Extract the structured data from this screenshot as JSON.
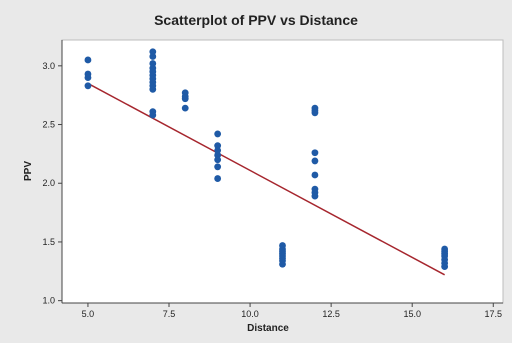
{
  "chart_data": {
    "type": "scatter",
    "title": "Scatterplot of PPV vs Distance",
    "xlabel": "Distance",
    "ylabel": "PPV",
    "xlim": [
      4.2,
      17.8
    ],
    "ylim": [
      0.98,
      3.22
    ],
    "xticks": [
      5.0,
      7.5,
      10.0,
      12.5,
      15.0,
      17.5
    ],
    "xtick_labels": [
      "5.0",
      "7.5",
      "10.0",
      "12.5",
      "15.0",
      "17.5"
    ],
    "yticks": [
      1.0,
      1.5,
      2.0,
      2.5,
      3.0
    ],
    "ytick_labels": [
      "1.0",
      "1.5",
      "2.0",
      "2.5",
      "3.0"
    ],
    "grid": false,
    "legend": "none",
    "points": [
      {
        "x": 5,
        "y": 3.05
      },
      {
        "x": 5,
        "y": 2.93
      },
      {
        "x": 5,
        "y": 2.9
      },
      {
        "x": 5,
        "y": 2.83
      },
      {
        "x": 7,
        "y": 3.12
      },
      {
        "x": 7,
        "y": 3.08
      },
      {
        "x": 7,
        "y": 3.02
      },
      {
        "x": 7,
        "y": 2.98
      },
      {
        "x": 7,
        "y": 2.95
      },
      {
        "x": 7,
        "y": 2.92
      },
      {
        "x": 7,
        "y": 2.89
      },
      {
        "x": 7,
        "y": 2.86
      },
      {
        "x": 7,
        "y": 2.83
      },
      {
        "x": 7,
        "y": 2.8
      },
      {
        "x": 7,
        "y": 2.61
      },
      {
        "x": 7,
        "y": 2.58
      },
      {
        "x": 8,
        "y": 2.77
      },
      {
        "x": 8,
        "y": 2.74
      },
      {
        "x": 8,
        "y": 2.72
      },
      {
        "x": 8,
        "y": 2.64
      },
      {
        "x": 9,
        "y": 2.42
      },
      {
        "x": 9,
        "y": 2.32
      },
      {
        "x": 9,
        "y": 2.28
      },
      {
        "x": 9,
        "y": 2.24
      },
      {
        "x": 9,
        "y": 2.2
      },
      {
        "x": 9,
        "y": 2.14
      },
      {
        "x": 9,
        "y": 2.04
      },
      {
        "x": 11,
        "y": 1.47
      },
      {
        "x": 11,
        "y": 1.44
      },
      {
        "x": 11,
        "y": 1.42
      },
      {
        "x": 11,
        "y": 1.4
      },
      {
        "x": 11,
        "y": 1.38
      },
      {
        "x": 11,
        "y": 1.36
      },
      {
        "x": 11,
        "y": 1.34
      },
      {
        "x": 11,
        "y": 1.31
      },
      {
        "x": 12,
        "y": 2.64
      },
      {
        "x": 12,
        "y": 2.62
      },
      {
        "x": 12,
        "y": 2.6
      },
      {
        "x": 12,
        "y": 2.26
      },
      {
        "x": 12,
        "y": 2.19
      },
      {
        "x": 12,
        "y": 2.07
      },
      {
        "x": 12,
        "y": 1.95
      },
      {
        "x": 12,
        "y": 1.92
      },
      {
        "x": 12,
        "y": 1.89
      },
      {
        "x": 16,
        "y": 1.44
      },
      {
        "x": 16,
        "y": 1.42
      },
      {
        "x": 16,
        "y": 1.4
      },
      {
        "x": 16,
        "y": 1.38
      },
      {
        "x": 16,
        "y": 1.35
      },
      {
        "x": 16,
        "y": 1.32
      },
      {
        "x": 16,
        "y": 1.29
      }
    ],
    "fit_line": {
      "x": [
        5,
        16
      ],
      "y": [
        2.85,
        1.22
      ]
    },
    "colors": {
      "background": "#e9e9e9",
      "plot_area": "#ffffff",
      "points": "#1f5aa6",
      "fit_line": "#a6262e",
      "axis": "#444444",
      "plot_border": "#bdbdbd"
    }
  }
}
